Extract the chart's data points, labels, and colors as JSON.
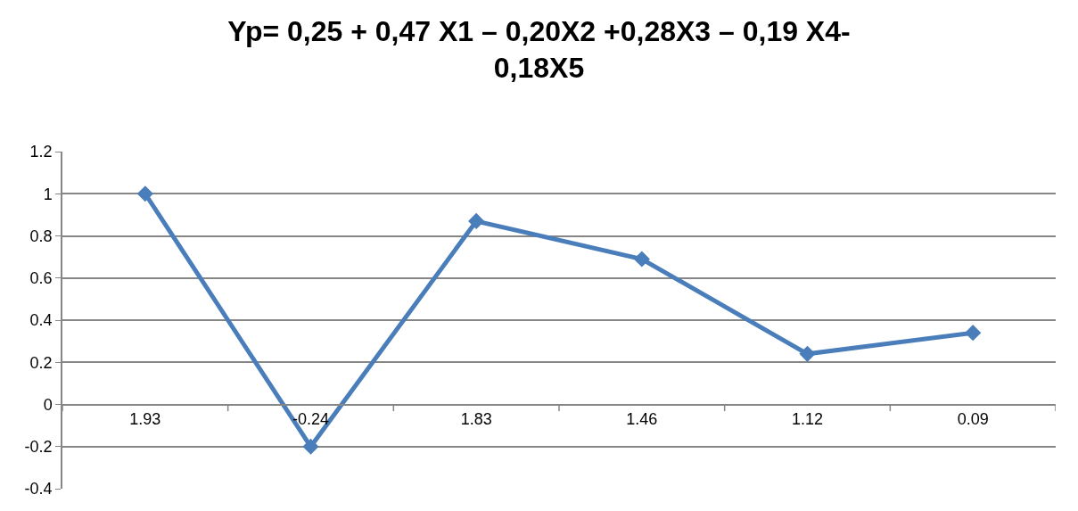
{
  "chart_data": {
    "type": "line",
    "title": "Yp= 0,25 + 0,47 X1 – 0,20X2 +0,28X3 – 0,19 X4-\n0,18X5",
    "categories": [
      "1.93",
      "-0.24",
      "1.83",
      "1.46",
      "1.12",
      "0.09"
    ],
    "series": [
      {
        "color": "#4a7ebb",
        "values": [
          1.0,
          -0.2,
          0.87,
          0.69,
          0.24,
          0.34
        ]
      }
    ],
    "ylim": [
      -0.4,
      1.2
    ],
    "yticks": [
      -0.4,
      -0.2,
      0,
      0.2,
      0.4,
      0.6,
      0.8,
      1,
      1.2
    ],
    "grid": "y",
    "marker": "diamond",
    "line_style": "solid"
  }
}
